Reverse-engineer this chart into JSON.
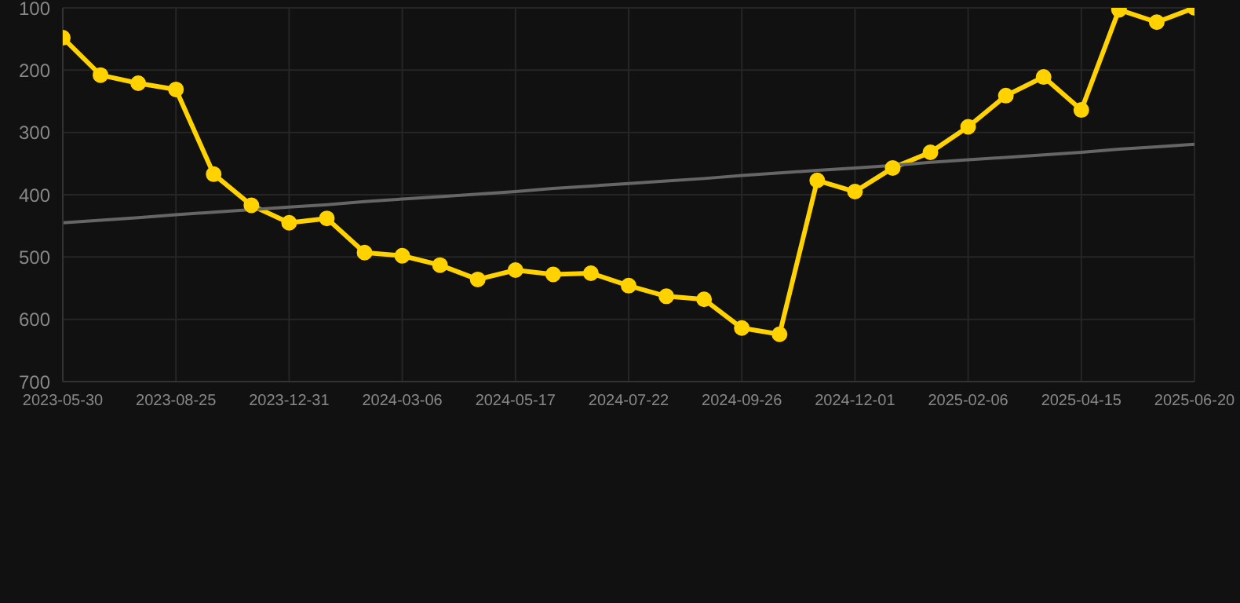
{
  "chart_data": {
    "type": "line",
    "categories": [
      "2023-05-30",
      null,
      null,
      "2023-08-25",
      null,
      null,
      "2023-12-31",
      null,
      null,
      "2024-03-06",
      null,
      null,
      "2024-05-17",
      null,
      null,
      "2024-07-22",
      null,
      null,
      "2024-09-26",
      null,
      null,
      "2024-12-01",
      null,
      null,
      "2025-02-06",
      null,
      null,
      "2025-04-15",
      null,
      null,
      "2025-06-20"
    ],
    "series": [
      {
        "color": "#ffd200",
        "values": [
          148,
          208,
          221,
          231,
          367,
          417,
          445,
          438,
          493,
          498,
          513,
          536,
          521,
          528,
          526,
          546,
          563,
          568,
          614,
          624,
          377,
          395,
          357,
          332,
          291,
          241,
          211,
          264,
          103,
          123,
          100
        ]
      },
      {
        "type": "line",
        "color": "#666666",
        "marker": "none",
        "values": [
          445,
          441,
          437,
          432,
          428,
          424,
          420,
          416,
          411,
          407,
          403,
          399,
          395,
          390,
          386,
          382,
          378,
          374,
          369,
          365,
          361,
          357,
          353,
          348,
          344,
          340,
          336,
          332,
          327,
          323,
          319
        ]
      }
    ],
    "ylim": [
      700,
      100
    ],
    "yticks": [
      100,
      200,
      300,
      400,
      500,
      600,
      700
    ],
    "grid": true,
    "marker": "circle",
    "legend": false
  }
}
